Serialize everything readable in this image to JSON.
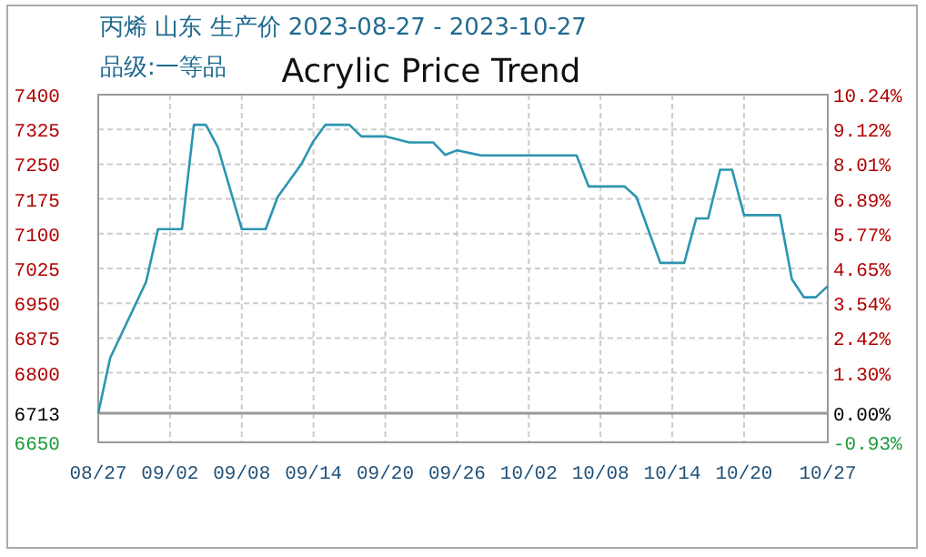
{
  "chart_data": {
    "type": "line",
    "title": "Acrylic Price Trend",
    "annotations": [
      "丙烯 山东 生产价 2023-08-27 - 2023-10-27",
      "品级:一等品"
    ],
    "x": [
      "2023-08-27",
      "2023-08-28",
      "2023-08-31",
      "2023-09-01",
      "2023-09-03",
      "2023-09-04",
      "2023-09-05",
      "2023-09-06",
      "2023-09-08",
      "2023-09-10",
      "2023-09-11",
      "2023-09-13",
      "2023-09-14",
      "2023-09-15",
      "2023-09-17",
      "2023-09-18",
      "2023-09-20",
      "2023-09-22",
      "2023-09-24",
      "2023-09-25",
      "2023-09-26",
      "2023-09-28",
      "2023-10-06",
      "2023-10-07",
      "2023-10-10",
      "2023-10-11",
      "2023-10-13",
      "2023-10-15",
      "2023-10-16",
      "2023-10-17",
      "2023-10-18",
      "2023-10-19",
      "2023-10-20",
      "2023-10-23",
      "2023-10-24",
      "2023-10-25",
      "2023-10-26",
      "2023-10-27"
    ],
    "series": [
      {
        "color": "#2b95b0",
        "values": [
          6713,
          6832,
          6996,
          7110,
          7110,
          7335,
          7335,
          7287,
          7110,
          7110,
          7179,
          7251,
          7300,
          7335,
          7335,
          7310,
          7310,
          7297,
          7297,
          7270,
          7280,
          7269,
          7269,
          7202,
          7202,
          7179,
          7037,
          7037,
          7133,
          7133,
          7238,
          7238,
          7140,
          7140,
          7002,
          6963,
          6963,
          6987
        ]
      }
    ],
    "xlim": [
      "2023-08-27",
      "2023-10-27"
    ],
    "xticks": [
      {
        "value": "2023-08-27",
        "label": "08/27"
      },
      {
        "value": "2023-09-02",
        "label": "09/02"
      },
      {
        "value": "2023-09-08",
        "label": "09/08"
      },
      {
        "value": "2023-09-14",
        "label": "09/14"
      },
      {
        "value": "2023-09-20",
        "label": "09/20"
      },
      {
        "value": "2023-09-26",
        "label": "09/26"
      },
      {
        "value": "2023-10-02",
        "label": "10/02"
      },
      {
        "value": "2023-10-08",
        "label": "10/08"
      },
      {
        "value": "2023-10-14",
        "label": "10/14"
      },
      {
        "value": "2023-10-20",
        "label": "10/20"
      },
      {
        "value": "2023-10-27",
        "label": "10/27"
      }
    ],
    "ylim": [
      6650,
      7400
    ],
    "yticks": [
      7400,
      7325,
      7250,
      7175,
      7100,
      7025,
      6950,
      6875,
      6800,
      6713,
      6650
    ],
    "y2lim": [
      -0.93,
      10.24
    ],
    "y2ticks": [
      {
        "value": 10.24,
        "label": "10.24%"
      },
      {
        "value": 9.12,
        "label": "9.12%"
      },
      {
        "value": 8.01,
        "label": "8.01%"
      },
      {
        "value": 6.89,
        "label": "6.89%"
      },
      {
        "value": 5.77,
        "label": "5.77%"
      },
      {
        "value": 4.65,
        "label": "4.65%"
      },
      {
        "value": 3.54,
        "label": "3.54%"
      },
      {
        "value": 2.42,
        "label": "2.42%"
      },
      {
        "value": 1.3,
        "label": "1.30%"
      },
      {
        "value": 0.0,
        "label": "0.00%"
      },
      {
        "value": -0.93,
        "label": "-0.93%"
      }
    ],
    "ref_lines": [
      {
        "axis": "y",
        "value": 6713,
        "color": "#999999"
      }
    ],
    "grid": true,
    "marker": "none",
    "line_style": "solid"
  }
}
